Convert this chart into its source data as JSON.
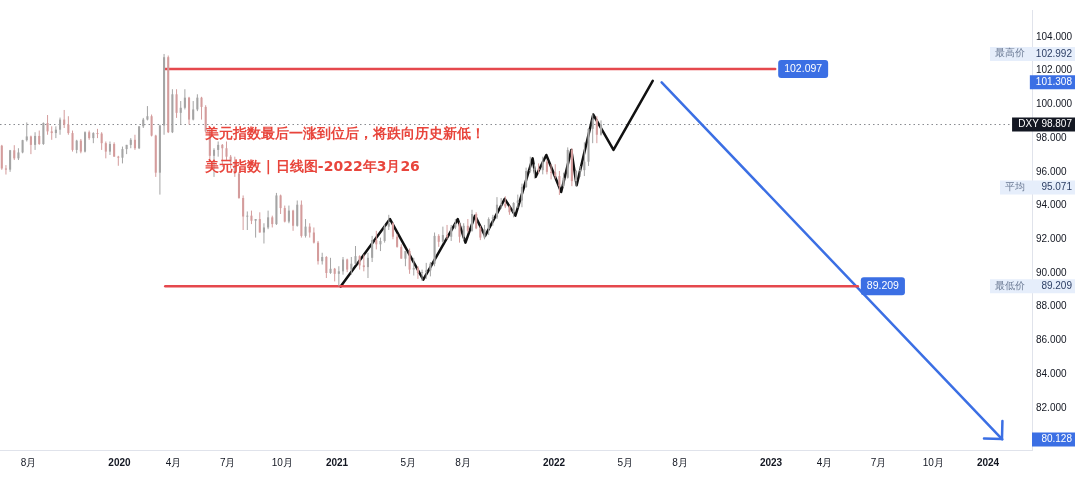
{
  "chart_data": {
    "type": "candlestick",
    "title": "美元指数最后一涨到位后，将跌向历史新低！",
    "subtitle": "美元指数 | 日线图-2022年3月26",
    "x": [
      "2019-06-17",
      "2019-06-24",
      "2019-07-01",
      "2019-07-08",
      "2019-07-15",
      "2019-07-22",
      "2019-07-29",
      "2019-08-05",
      "2019-08-12",
      "2019-08-19",
      "2019-08-26",
      "2019-09-02",
      "2019-09-09",
      "2019-09-16",
      "2019-09-23",
      "2019-09-30",
      "2019-10-07",
      "2019-10-14",
      "2019-10-21",
      "2019-10-28",
      "2019-11-04",
      "2019-11-11",
      "2019-11-18",
      "2019-11-25",
      "2019-12-02",
      "2019-12-09",
      "2019-12-16",
      "2019-12-23",
      "2019-12-30",
      "2020-01-06",
      "2020-01-13",
      "2020-01-20",
      "2020-01-27",
      "2020-02-03",
      "2020-02-10",
      "2020-02-17",
      "2020-02-24",
      "2020-03-02",
      "2020-03-09",
      "2020-03-16",
      "2020-03-23",
      "2020-03-30",
      "2020-04-06",
      "2020-04-13",
      "2020-04-20",
      "2020-04-27",
      "2020-05-04",
      "2020-05-11",
      "2020-05-18",
      "2020-05-25",
      "2020-06-01",
      "2020-06-08",
      "2020-06-15",
      "2020-06-22",
      "2020-06-29",
      "2020-07-06",
      "2020-07-13",
      "2020-07-20",
      "2020-07-27",
      "2020-08-03",
      "2020-08-10",
      "2020-08-17",
      "2020-08-24",
      "2020-08-31",
      "2020-09-07",
      "2020-09-14",
      "2020-09-21",
      "2020-09-28",
      "2020-10-05",
      "2020-10-12",
      "2020-10-19",
      "2020-10-26",
      "2020-11-02",
      "2020-11-09",
      "2020-11-16",
      "2020-11-23",
      "2020-11-30",
      "2020-12-07",
      "2020-12-14",
      "2020-12-21",
      "2020-12-28",
      "2021-01-04",
      "2021-01-11",
      "2021-01-18",
      "2021-01-25",
      "2021-02-01",
      "2021-02-08",
      "2021-02-15",
      "2021-02-22",
      "2021-03-01",
      "2021-03-08",
      "2021-03-15",
      "2021-03-22",
      "2021-03-29",
      "2021-04-05",
      "2021-04-12",
      "2021-04-19",
      "2021-04-26",
      "2021-05-03",
      "2021-05-10",
      "2021-05-17",
      "2021-05-24",
      "2021-05-31",
      "2021-06-07",
      "2021-06-14",
      "2021-06-21",
      "2021-06-28",
      "2021-07-05",
      "2021-07-12",
      "2021-07-19",
      "2021-07-26",
      "2021-08-02",
      "2021-08-09",
      "2021-08-16",
      "2021-08-23",
      "2021-08-30",
      "2021-09-06",
      "2021-09-13",
      "2021-09-20",
      "2021-09-27",
      "2021-10-04",
      "2021-10-11",
      "2021-10-18",
      "2021-10-25",
      "2021-11-01",
      "2021-11-08",
      "2021-11-15",
      "2021-11-22",
      "2021-11-29",
      "2021-12-06",
      "2021-12-13",
      "2021-12-20",
      "2021-12-27",
      "2022-01-03",
      "2022-01-10",
      "2022-01-17",
      "2022-01-24",
      "2022-01-31",
      "2022-02-07",
      "2022-02-14",
      "2022-02-21",
      "2022-02-28",
      "2022-03-07",
      "2022-03-14",
      "2022-03-21"
    ],
    "ohlc": [
      [
        97.55,
        97.6,
        96.12,
        96.2
      ],
      [
        96.2,
        96.4,
        95.84,
        96.13
      ],
      [
        96.13,
        97.3,
        96.0,
        97.28
      ],
      [
        97.28,
        97.58,
        96.7,
        96.8
      ],
      [
        96.8,
        97.4,
        96.7,
        97.15
      ],
      [
        97.15,
        97.9,
        97.1,
        97.88
      ],
      [
        97.88,
        98.93,
        97.8,
        98.1
      ],
      [
        98.1,
        98.15,
        97.05,
        97.6
      ],
      [
        97.6,
        98.35,
        97.3,
        98.13
      ],
      [
        98.13,
        98.45,
        97.6,
        97.65
      ],
      [
        97.65,
        98.93,
        97.6,
        98.9
      ],
      [
        98.9,
        99.37,
        98.2,
        98.4
      ],
      [
        98.4,
        98.7,
        97.9,
        98.3
      ],
      [
        98.3,
        98.7,
        98.0,
        98.5
      ],
      [
        98.5,
        99.22,
        98.2,
        99.1
      ],
      [
        99.1,
        99.67,
        98.6,
        98.8
      ],
      [
        98.8,
        99.3,
        98.2,
        98.3
      ],
      [
        98.3,
        98.45,
        97.2,
        97.3
      ],
      [
        97.3,
        97.9,
        97.1,
        97.85
      ],
      [
        97.85,
        97.95,
        97.1,
        97.2
      ],
      [
        97.2,
        98.4,
        97.15,
        98.35
      ],
      [
        98.35,
        98.45,
        97.9,
        98.0
      ],
      [
        98.0,
        98.35,
        97.7,
        98.3
      ],
      [
        98.3,
        98.55,
        98.0,
        98.27
      ],
      [
        98.27,
        98.35,
        97.3,
        97.7
      ],
      [
        97.7,
        97.8,
        96.8,
        97.2
      ],
      [
        97.2,
        97.8,
        97.0,
        97.65
      ],
      [
        97.65,
        97.75,
        96.9,
        96.9
      ],
      [
        96.9,
        96.95,
        96.36,
        96.84
      ],
      [
        96.84,
        97.5,
        96.5,
        97.35
      ],
      [
        97.35,
        97.6,
        97.05,
        97.6
      ],
      [
        97.6,
        98.0,
        97.4,
        97.9
      ],
      [
        97.9,
        98.2,
        97.3,
        97.4
      ],
      [
        97.4,
        98.7,
        97.35,
        98.7
      ],
      [
        98.7,
        99.2,
        98.6,
        99.1
      ],
      [
        99.1,
        99.9,
        99.05,
        99.3
      ],
      [
        99.3,
        99.4,
        98.1,
        98.15
      ],
      [
        98.15,
        98.2,
        95.7,
        95.95
      ],
      [
        95.95,
        98.8,
        94.65,
        98.75
      ],
      [
        98.75,
        102.992,
        98.2,
        102.8
      ],
      [
        102.8,
        102.9,
        98.3,
        98.35
      ],
      [
        98.35,
        100.9,
        98.3,
        100.6
      ],
      [
        100.6,
        100.9,
        99.2,
        99.5
      ],
      [
        99.5,
        100.2,
        98.8,
        99.8
      ],
      [
        99.8,
        100.9,
        99.7,
        100.4
      ],
      [
        100.4,
        100.45,
        98.8,
        99.1
      ],
      [
        99.1,
        100.2,
        99.05,
        99.7
      ],
      [
        99.7,
        100.6,
        99.6,
        100.4
      ],
      [
        100.4,
        100.45,
        99.1,
        99.85
      ],
      [
        99.85,
        99.95,
        98.35,
        98.4
      ],
      [
        98.4,
        98.5,
        96.65,
        96.95
      ],
      [
        96.95,
        97.4,
        95.7,
        97.3
      ],
      [
        97.3,
        97.8,
        96.9,
        97.6
      ],
      [
        97.6,
        97.65,
        96.3,
        97.4
      ],
      [
        97.4,
        97.8,
        96.7,
        96.9
      ],
      [
        96.9,
        97.0,
        96.2,
        96.6
      ],
      [
        96.6,
        96.9,
        95.7,
        95.9
      ],
      [
        95.9,
        96.0,
        94.4,
        94.45
      ],
      [
        94.45,
        94.6,
        92.55,
        93.35
      ],
      [
        93.35,
        93.65,
        92.55,
        93.4
      ],
      [
        93.4,
        93.7,
        92.9,
        93.1
      ],
      [
        93.1,
        93.2,
        92.1,
        93.2
      ],
      [
        93.2,
        93.6,
        92.4,
        92.4
      ],
      [
        92.4,
        92.95,
        91.75,
        92.7
      ],
      [
        92.7,
        93.7,
        92.6,
        93.3
      ],
      [
        93.3,
        93.4,
        92.7,
        92.9
      ],
      [
        92.9,
        94.75,
        92.85,
        94.6
      ],
      [
        94.6,
        94.65,
        93.5,
        93.85
      ],
      [
        93.85,
        94.0,
        93.0,
        93.05
      ],
      [
        93.05,
        94.0,
        92.95,
        93.7
      ],
      [
        93.7,
        93.75,
        92.5,
        92.8
      ],
      [
        92.8,
        94.3,
        92.75,
        94.05
      ],
      [
        94.05,
        94.3,
        92.1,
        92.2
      ],
      [
        92.2,
        93.2,
        92.1,
        92.75
      ],
      [
        92.75,
        92.95,
        92.1,
        92.4
      ],
      [
        92.4,
        92.7,
        91.75,
        91.8
      ],
      [
        91.8,
        91.9,
        90.5,
        90.7
      ],
      [
        90.7,
        91.2,
        90.5,
        90.95
      ],
      [
        90.95,
        91.0,
        89.7,
        90.0
      ],
      [
        90.0,
        90.9,
        89.95,
        90.25
      ],
      [
        90.25,
        90.3,
        89.5,
        89.95
      ],
      [
        89.95,
        90.4,
        89.209,
        90.1
      ],
      [
        90.1,
        90.95,
        89.9,
        90.8
      ],
      [
        90.8,
        90.85,
        90.05,
        90.2
      ],
      [
        90.2,
        90.95,
        89.9,
        90.55
      ],
      [
        90.55,
        91.6,
        90.5,
        91.0
      ],
      [
        91.0,
        91.05,
        90.2,
        90.45
      ],
      [
        90.45,
        91.1,
        90.1,
        90.35
      ],
      [
        90.35,
        91.2,
        89.7,
        90.9
      ],
      [
        90.9,
        92.2,
        90.65,
        91.95
      ],
      [
        91.95,
        92.5,
        91.4,
        91.7
      ],
      [
        91.7,
        92.1,
        91.3,
        91.9
      ],
      [
        91.9,
        92.9,
        91.8,
        92.75
      ],
      [
        92.75,
        93.45,
        92.55,
        92.95
      ],
      [
        92.95,
        93.0,
        92.0,
        92.15
      ],
      [
        92.15,
        92.3,
        91.5,
        91.55
      ],
      [
        91.55,
        91.7,
        90.85,
        90.85
      ],
      [
        90.85,
        91.3,
        90.4,
        91.3
      ],
      [
        91.3,
        91.45,
        89.95,
        90.2
      ],
      [
        90.2,
        90.9,
        89.85,
        90.3
      ],
      [
        90.3,
        90.4,
        89.65,
        90.0
      ],
      [
        90.0,
        90.2,
        89.53,
        90.05
      ],
      [
        90.05,
        90.6,
        89.65,
        90.15
      ],
      [
        90.15,
        90.65,
        89.8,
        90.55
      ],
      [
        90.55,
        92.4,
        90.4,
        92.2
      ],
      [
        92.2,
        92.3,
        91.55,
        91.85
      ],
      [
        91.85,
        92.75,
        91.8,
        92.25
      ],
      [
        92.25,
        92.85,
        92.0,
        92.15
      ],
      [
        92.15,
        92.85,
        91.9,
        92.7
      ],
      [
        92.7,
        93.2,
        92.6,
        92.9
      ],
      [
        92.9,
        93.0,
        91.8,
        92.15
      ],
      [
        92.15,
        92.95,
        91.95,
        92.8
      ],
      [
        92.8,
        93.2,
        92.4,
        92.5
      ],
      [
        92.5,
        93.75,
        92.45,
        93.5
      ],
      [
        93.5,
        93.6,
        92.6,
        92.65
      ],
      [
        92.65,
        92.8,
        91.95,
        92.1
      ],
      [
        92.1,
        92.85,
        92.0,
        92.6
      ],
      [
        92.6,
        93.3,
        92.25,
        93.2
      ],
      [
        93.2,
        93.45,
        92.8,
        93.3
      ],
      [
        93.3,
        94.5,
        93.2,
        94.05
      ],
      [
        94.05,
        94.45,
        93.8,
        94.1
      ],
      [
        94.1,
        94.55,
        93.85,
        93.95
      ],
      [
        93.95,
        94.0,
        93.45,
        93.6
      ],
      [
        93.6,
        94.2,
        93.3,
        94.15
      ],
      [
        94.15,
        94.65,
        93.85,
        94.3
      ],
      [
        94.3,
        95.3,
        93.9,
        95.1
      ],
      [
        95.1,
        96.25,
        95.05,
        96.05
      ],
      [
        96.05,
        96.9,
        95.95,
        96.1
      ],
      [
        96.1,
        96.45,
        95.6,
        96.2
      ],
      [
        96.2,
        96.5,
        95.9,
        96.1
      ],
      [
        96.1,
        96.9,
        95.85,
        96.6
      ],
      [
        96.6,
        96.7,
        95.85,
        96.0
      ],
      [
        96.0,
        96.45,
        95.55,
        95.97
      ],
      [
        95.97,
        96.45,
        95.6,
        95.75
      ],
      [
        95.75,
        96.05,
        94.63,
        95.15
      ],
      [
        95.15,
        95.95,
        95.1,
        95.65
      ],
      [
        95.65,
        97.45,
        95.6,
        97.3
      ],
      [
        97.3,
        97.4,
        95.15,
        95.45
      ],
      [
        95.45,
        96.1,
        95.15,
        96.05
      ],
      [
        96.05,
        96.35,
        95.7,
        96.1
      ],
      [
        96.1,
        97.75,
        95.75,
        96.6
      ],
      [
        96.6,
        98.6,
        96.35,
        98.55
      ],
      [
        98.55,
        99.42,
        97.7,
        99.1
      ],
      [
        99.1,
        99.3,
        97.7,
        98.2
      ],
      [
        98.2,
        99.05,
        98.15,
        98.807
      ]
    ],
    "colors": [
      "#d49c9c",
      "#d49c9c",
      "#a4a4a4",
      "#d49c9c",
      "#a4a4a4",
      "#a4a4a4",
      "#a4a4a4",
      "#d49c9c",
      "#a4a4a4",
      "#d49c9c",
      "#a4a4a4",
      "#d49c9c",
      "#d49c9c",
      "#a4a4a4",
      "#a4a4a4",
      "#d49c9c",
      "#d49c9c",
      "#d49c9c",
      "#a4a4a4",
      "#d49c9c",
      "#a4a4a4",
      "#d49c9c",
      "#a4a4a4",
      "#d49c9c",
      "#d49c9c",
      "#d49c9c",
      "#a4a4a4",
      "#d49c9c",
      "#d49c9c",
      "#a4a4a4",
      "#a4a4a4",
      "#a4a4a4",
      "#d49c9c",
      "#a4a4a4",
      "#a4a4a4",
      "#a4a4a4",
      "#d49c9c",
      "#d49c9c",
      "#a4a4a4",
      "#a4a4a4",
      "#d49c9c",
      "#a4a4a4",
      "#d49c9c",
      "#a4a4a4",
      "#a4a4a4",
      "#d49c9c",
      "#a4a4a4",
      "#a4a4a4",
      "#d49c9c",
      "#d49c9c",
      "#d49c9c",
      "#a4a4a4",
      "#a4a4a4",
      "#d49c9c",
      "#d49c9c",
      "#d49c9c",
      "#d49c9c",
      "#d49c9c",
      "#d49c9c",
      "#a4a4a4",
      "#d49c9c",
      "#a4a4a4",
      "#d49c9c",
      "#a4a4a4",
      "#a4a4a4",
      "#d49c9c",
      "#a4a4a4",
      "#d49c9c",
      "#d49c9c",
      "#a4a4a4",
      "#d49c9c",
      "#a4a4a4",
      "#d49c9c",
      "#a4a4a4",
      "#d49c9c",
      "#d49c9c",
      "#d49c9c",
      "#a4a4a4",
      "#d49c9c",
      "#a4a4a4",
      "#d49c9c",
      "#a4a4a4",
      "#a4a4a4",
      "#d49c9c",
      "#a4a4a4",
      "#a4a4a4",
      "#d49c9c",
      "#d49c9c",
      "#a4a4a4",
      "#a4a4a4",
      "#d49c9c",
      "#a4a4a4",
      "#a4a4a4",
      "#a4a4a4",
      "#d49c9c",
      "#d49c9c",
      "#d49c9c",
      "#a4a4a4",
      "#d49c9c",
      "#a4a4a4",
      "#d49c9c",
      "#a4a4a4",
      "#a4a4a4",
      "#a4a4a4",
      "#a4a4a4",
      "#d49c9c",
      "#a4a4a4",
      "#d49c9c",
      "#a4a4a4",
      "#a4a4a4",
      "#d49c9c",
      "#a4a4a4",
      "#d49c9c",
      "#a4a4a4",
      "#d49c9c",
      "#d49c9c",
      "#a4a4a4",
      "#a4a4a4",
      "#a4a4a4",
      "#a4a4a4",
      "#a4a4a4",
      "#d49c9c",
      "#d49c9c",
      "#a4a4a4",
      "#a4a4a4",
      "#a4a4a4",
      "#a4a4a4",
      "#a4a4a4",
      "#a4a4a4",
      "#d49c9c",
      "#a4a4a4",
      "#d49c9c",
      "#d49c9c",
      "#d49c9c",
      "#d49c9c",
      "#a4a4a4",
      "#a4a4a4",
      "#d49c9c",
      "#a4a4a4",
      "#a4a4a4",
      "#a4a4a4",
      "#a4a4a4",
      "#a4a4a4",
      "#d49c9c",
      "#a4a4a4"
    ],
    "series": [
      {
        "type": "line",
        "x": [
          "2020-03-18",
          "2023-01-08"
        ],
        "values": [
          102.097,
          102.097
        ],
        "color": "#e5484d",
        "value_labels": [
          null,
          "102.097"
        ]
      },
      {
        "type": "line",
        "x": [
          "2020-03-18",
          "2023-05-27"
        ],
        "values": [
          89.209,
          89.209
        ],
        "color": "#e5484d",
        "value_labels": [
          null,
          "89.209"
        ]
      },
      {
        "type": "line",
        "x": [
          "2021-01-07",
          "2021-03-31",
          "2021-05-26",
          "2021-07-23",
          "2021-08-05",
          "2021-08-21",
          "2021-09-07",
          "2021-10-10",
          "2021-10-28",
          "2021-11-26",
          "2021-12-01",
          "2021-12-19",
          "2022-01-13",
          "2022-01-30",
          "2022-02-08",
          "2022-03-08",
          "2022-04-11",
          "2022-06-16"
        ],
        "values": [
          89.2,
          93.2,
          89.6,
          93.2,
          91.8,
          93.4,
          92.2,
          94.4,
          93.4,
          96.8,
          95.7,
          97.0,
          94.8,
          97.3,
          95.2,
          99.4,
          97.3,
          101.4
        ],
        "color": "#111111"
      },
      {
        "type": "line",
        "x": [
          "2022-07-01",
          "2024-01-25"
        ],
        "values": [
          101.308,
          80.128
        ],
        "color": "#3b6fe4",
        "axis": "y3"
      }
    ],
    "xlim": [
      "2019-06-14",
      "2024-03-15"
    ],
    "xticks": [
      {
        "value": "2019-08-01",
        "label": "8月"
      },
      {
        "value": "2020-01-01",
        "label": "2020"
      },
      {
        "value": "2020-04-01",
        "label": "4月"
      },
      {
        "value": "2020-07-01",
        "label": "7月"
      },
      {
        "value": "2020-10-01",
        "label": "10月"
      },
      {
        "value": "2021-01-01",
        "label": "2021"
      },
      {
        "value": "2021-05-01",
        "label": "5月"
      },
      {
        "value": "2021-08-01",
        "label": "8月"
      },
      {
        "value": "2022-01-01",
        "label": "2022"
      },
      {
        "value": "2022-05-01",
        "label": "5月"
      },
      {
        "value": "2022-08-01",
        "label": "8月"
      },
      {
        "value": "2023-01-01",
        "label": "2023"
      },
      {
        "value": "2023-04-01",
        "label": "4月"
      },
      {
        "value": "2023-07-01",
        "label": "7月"
      },
      {
        "value": "2023-10-01",
        "label": "10月"
      },
      {
        "value": "2024-01-01",
        "label": "2024"
      }
    ],
    "ylim": [
      79.5,
      105.6
    ],
    "yticks": [
      {
        "value": 82,
        "label": "82.000"
      },
      {
        "value": 84,
        "label": "84.000"
      },
      {
        "value": 86,
        "label": "86.000"
      },
      {
        "value": 88,
        "label": "88.000"
      },
      {
        "value": 90,
        "label": "90.000"
      },
      {
        "value": 92,
        "label": "92.000"
      },
      {
        "value": 94,
        "label": "94.000"
      },
      {
        "value": 96,
        "label": "96.000"
      },
      {
        "value": 98,
        "label": "98.000"
      },
      {
        "value": 100,
        "label": "100.000"
      },
      {
        "value": 102,
        "label": "102.000"
      },
      {
        "value": 104,
        "label": "104.000"
      }
    ],
    "y2lim": [
      79.5,
      105.6
    ],
    "y2ticks": [
      102.992,
      95.071,
      89.209
    ],
    "y3lim": [
      79.5,
      105.6
    ],
    "y3ticks": [
      101.308,
      80.128
    ],
    "ref_lines": [
      {
        "axis": "y",
        "value": 98.807,
        "label": "DXY 98.807",
        "line_style": "dotted",
        "color": "#131722"
      }
    ],
    "annotations": [
      "最高价",
      "平均",
      "最低价"
    ]
  }
}
